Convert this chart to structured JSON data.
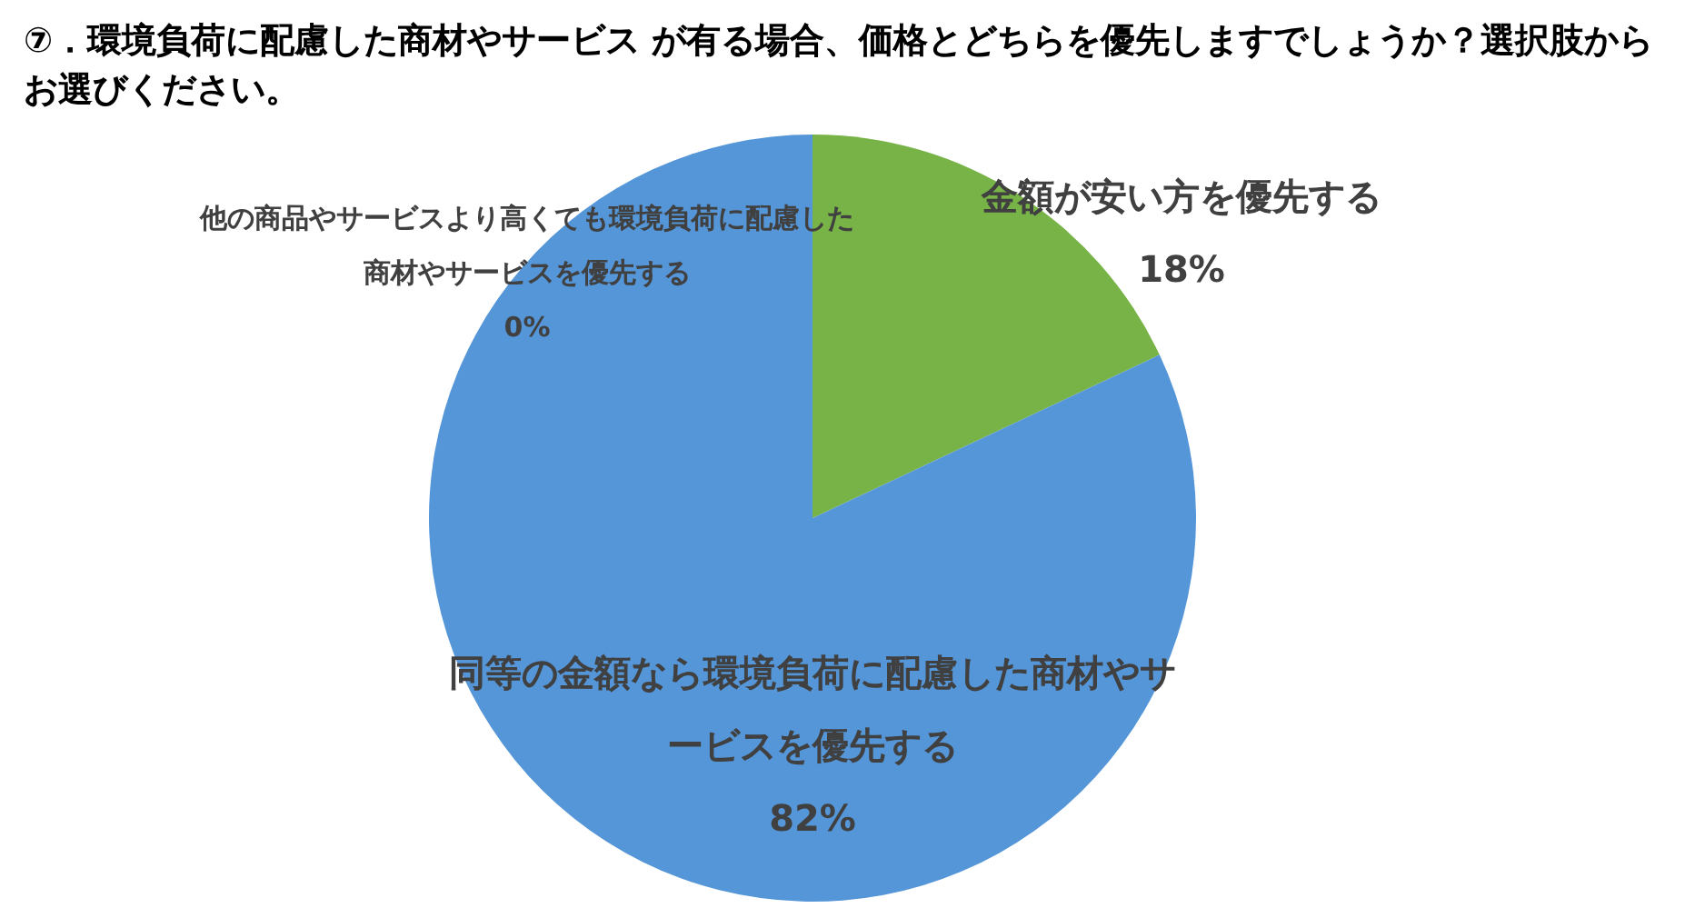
{
  "chart_data": {
    "type": "pie",
    "title": "⑦．環境負荷に配慮した商材やサービス が有る場合、価格とどちらを優先しますでしょうか？選択肢からお選びください。",
    "categories": [
      "金額が安い方を優先する",
      "同等の金額なら環境負荷に配慮した商材やサービスを優先する",
      "他の商品やサービスより高くても環境負荷に配慮した商材やサービスを優先する"
    ],
    "values": [
      18,
      82,
      0
    ],
    "value_labels": [
      "18%",
      "82%",
      "0%"
    ],
    "colors": [
      "#77b347",
      "#5596d8",
      "#a5a5a5"
    ],
    "legend": false
  }
}
